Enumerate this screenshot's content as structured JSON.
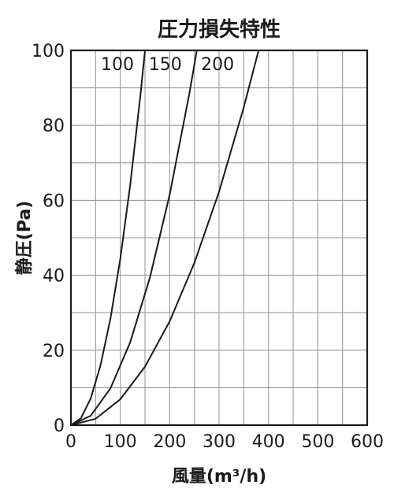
{
  "chart_data": {
    "type": "line",
    "title": "圧力損失特性",
    "xlabel": "風量(m³/h)",
    "ylabel": "静圧(Pa)",
    "xlim": [
      0,
      600
    ],
    "ylim": [
      0,
      100
    ],
    "x_ticks": [
      "0",
      "100",
      "200",
      "300",
      "400",
      "500",
      "600"
    ],
    "y_ticks": [
      "0",
      "20",
      "40",
      "60",
      "80",
      "100"
    ],
    "grid": true,
    "legend": "none",
    "series": [
      {
        "name": "100",
        "x": [
          0,
          20,
          40,
          60,
          80,
          100,
          120,
          140,
          150
        ],
        "y": [
          0,
          1.8,
          7.1,
          16,
          28.4,
          44.4,
          64,
          87.1,
          100
        ]
      },
      {
        "name": "150",
        "x": [
          0,
          40,
          80,
          120,
          160,
          200,
          240,
          255
        ],
        "y": [
          0,
          2.5,
          9.8,
          22.1,
          39.4,
          61.5,
          88.6,
          100
        ]
      },
      {
        "name": "200",
        "x": [
          0,
          50,
          100,
          150,
          200,
          250,
          300,
          350,
          380
        ],
        "y": [
          0,
          1.7,
          6.9,
          15.6,
          27.7,
          43.3,
          62.3,
          84.8,
          100
        ]
      }
    ],
    "colors": {
      "line": "#1a1a1a",
      "grid": "#9a9a9a",
      "frame": "#1a1a1a"
    }
  }
}
